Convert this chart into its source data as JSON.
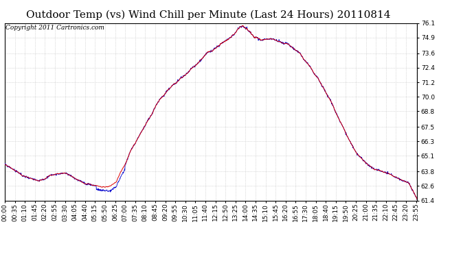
{
  "title": "Outdoor Temp (vs) Wind Chill per Minute (Last 24 Hours) 20110814",
  "copyright": "Copyright 2011 Cartronics.com",
  "ylim": [
    61.4,
    76.1
  ],
  "yticks": [
    76.1,
    74.9,
    73.6,
    72.4,
    71.2,
    70.0,
    68.8,
    67.5,
    66.3,
    65.1,
    63.8,
    62.6,
    61.4
  ],
  "background_color": "#ffffff",
  "grid_color": "#bbbbbb",
  "line_color_temp": "#dd0000",
  "line_color_wind": "#0000cc",
  "title_fontsize": 11,
  "tick_fontsize": 6.5,
  "copyright_fontsize": 6.5
}
